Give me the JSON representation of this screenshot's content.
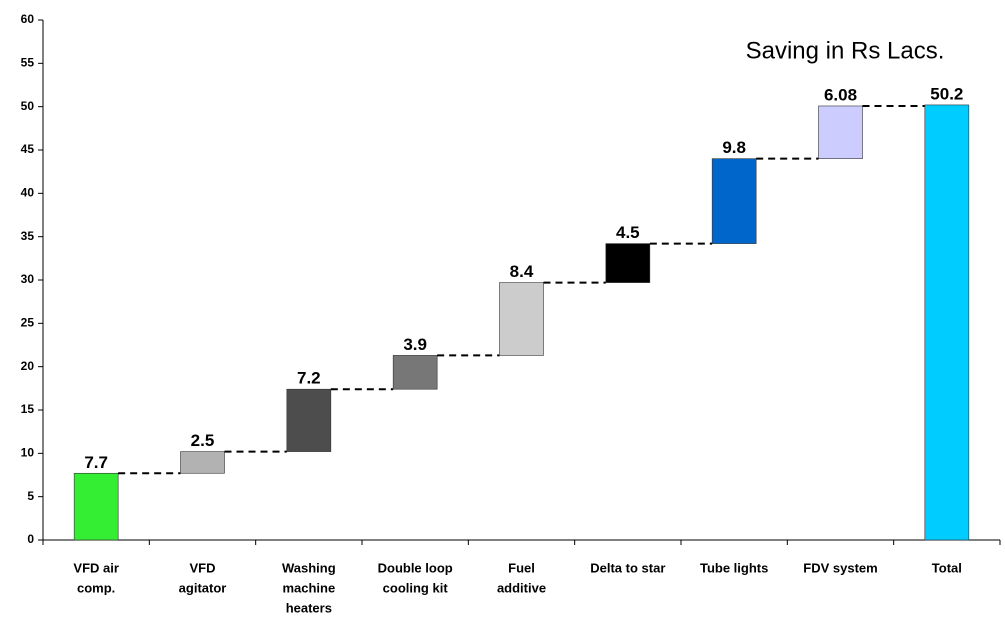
{
  "chart_data": {
    "type": "waterfall",
    "annotation": "Saving in Rs Lacs.",
    "categories": [
      [
        "VFD air",
        "comp."
      ],
      [
        "VFD",
        "agitator"
      ],
      [
        "Washing",
        "machine",
        "heaters"
      ],
      [
        "Double loop",
        "cooling kit"
      ],
      [
        "Fuel",
        "additive"
      ],
      [
        "Delta to star"
      ],
      [
        "Tube lights"
      ],
      [
        "FDV system"
      ],
      [
        "Total"
      ]
    ],
    "values": [
      7.7,
      2.5,
      7.2,
      3.9,
      8.4,
      4.5,
      9.8,
      6.08,
      50.2
    ],
    "colors": [
      "#33ee33",
      "#b2b2b2",
      "#4d4d4d",
      "#777777",
      "#cccccc",
      "#000000",
      "#0066cc",
      "#ccccff",
      "#00ccff"
    ],
    "ylim": [
      0,
      60
    ],
    "yticks": [
      0,
      5,
      10,
      15,
      20,
      25,
      30,
      35,
      40,
      45,
      50,
      55,
      60
    ]
  }
}
